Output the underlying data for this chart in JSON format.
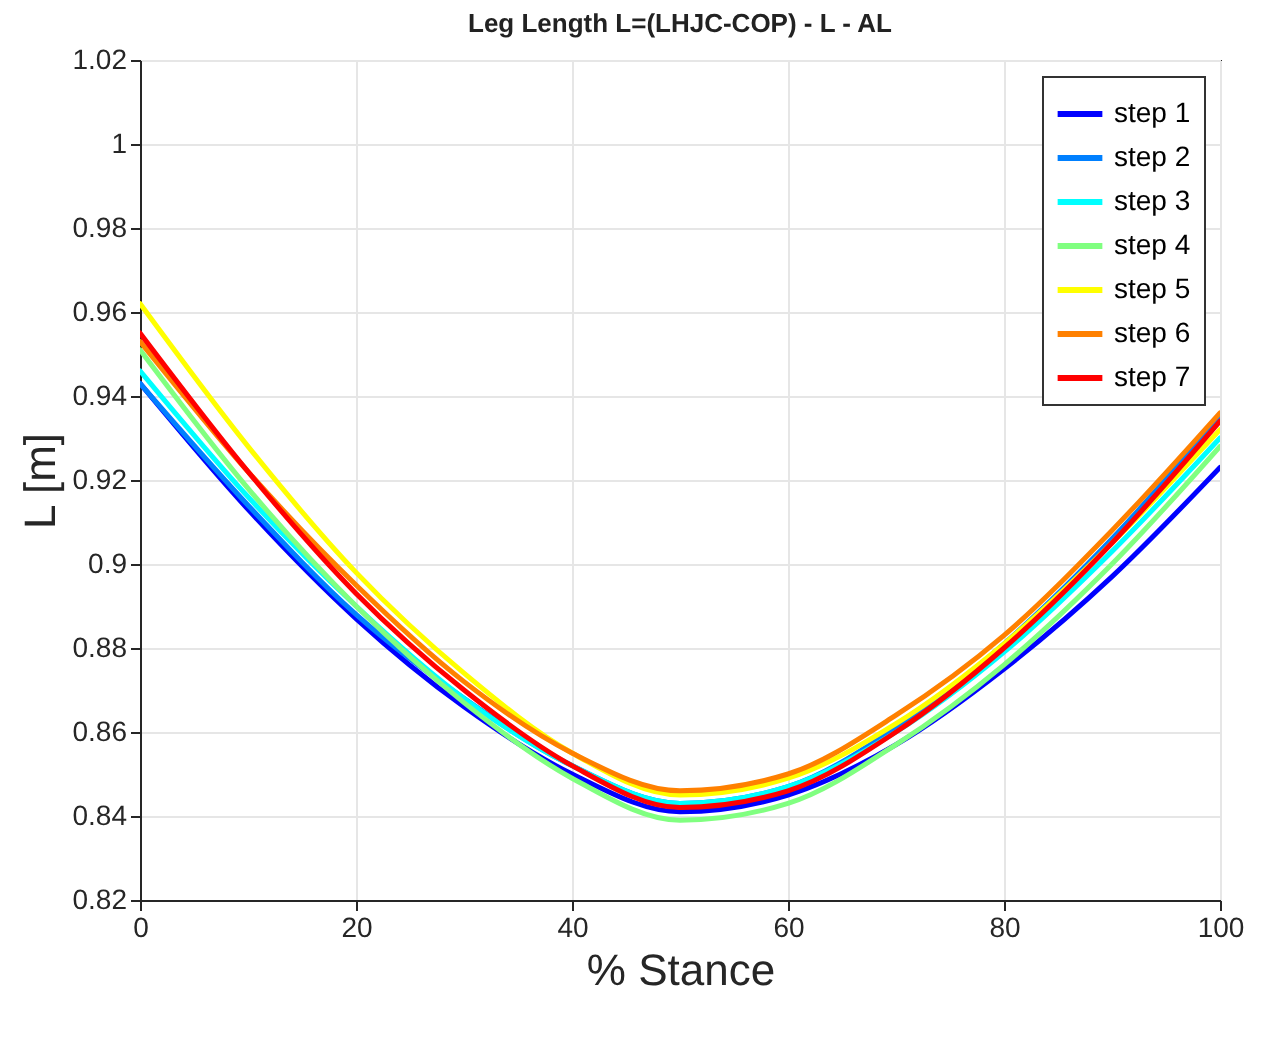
{
  "chart_data": {
    "type": "line",
    "title": "Leg Length  L=(LHJC-COP) - L - AL",
    "xlabel": "% Stance",
    "ylabel": "L [m]",
    "x": [
      0,
      10,
      20,
      30,
      40,
      50,
      60,
      70,
      80,
      90,
      100
    ],
    "series": [
      {
        "name": "step 1",
        "color": "#0000ff",
        "values": [
          0.943,
          0.913,
          0.887,
          0.866,
          0.85,
          0.841,
          0.845,
          0.857,
          0.875,
          0.897,
          0.923
        ]
      },
      {
        "name": "step 2",
        "color": "#0080ff",
        "values": [
          0.943,
          0.914,
          0.888,
          0.868,
          0.852,
          0.843,
          0.847,
          0.861,
          0.881,
          0.906,
          0.935
        ]
      },
      {
        "name": "step 3",
        "color": "#00ffff",
        "values": [
          0.946,
          0.916,
          0.89,
          0.868,
          0.852,
          0.843,
          0.847,
          0.86,
          0.879,
          0.903,
          0.93
        ]
      },
      {
        "name": "step 4",
        "color": "#80ff80",
        "values": [
          0.951,
          0.918,
          0.89,
          0.867,
          0.849,
          0.839,
          0.843,
          0.857,
          0.876,
          0.9,
          0.928
        ]
      },
      {
        "name": "step 5",
        "color": "#ffff00",
        "values": [
          0.962,
          0.928,
          0.898,
          0.874,
          0.855,
          0.845,
          0.849,
          0.862,
          0.881,
          0.905,
          0.932
        ]
      },
      {
        "name": "step 6",
        "color": "#ff8000",
        "values": [
          0.953,
          0.922,
          0.895,
          0.872,
          0.855,
          0.846,
          0.85,
          0.864,
          0.883,
          0.908,
          0.936
        ]
      },
      {
        "name": "step 7",
        "color": "#ff0000",
        "values": [
          0.955,
          0.922,
          0.893,
          0.87,
          0.852,
          0.842,
          0.846,
          0.86,
          0.88,
          0.905,
          0.934
        ]
      }
    ],
    "xlim": [
      0,
      100
    ],
    "xticks": [
      0,
      20,
      40,
      60,
      80,
      100
    ],
    "ylim": [
      0.82,
      1.02
    ],
    "yticks": [
      0.82,
      0.84,
      0.86,
      0.88,
      0.9,
      0.92,
      0.94,
      0.96,
      0.98,
      1,
      1.02
    ],
    "grid": true,
    "legend": "top right",
    "marker": "none",
    "line_style": "solid"
  }
}
